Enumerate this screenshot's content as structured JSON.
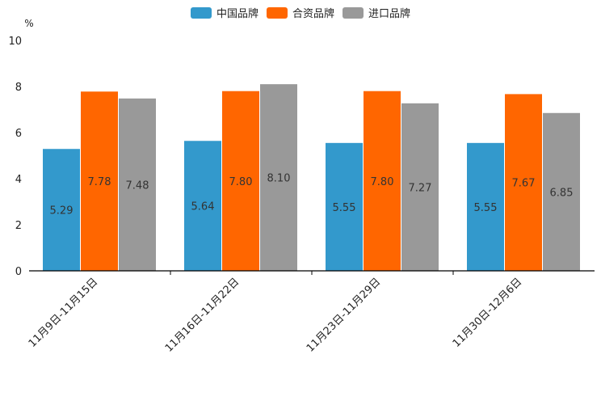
{
  "chart_data": {
    "type": "bar",
    "title": "",
    "xlabel": "",
    "ylabel": "%",
    "ylim": [
      0,
      10
    ],
    "yticks": [
      0,
      2,
      4,
      6,
      8,
      10
    ],
    "grid": false,
    "legend_position": "top-center",
    "categories": [
      "11月9日-11月15日",
      "11月16日-11月22日",
      "11月23日-11月29日",
      "11月30日-12月6日"
    ],
    "series": [
      {
        "name": "中国品牌",
        "color": "#3399cc",
        "values": [
          5.29,
          5.64,
          5.55,
          5.55
        ],
        "labels": [
          "5.29",
          "5.64",
          "5.55",
          "5.55"
        ]
      },
      {
        "name": "合资品牌",
        "color": "#ff6600",
        "values": [
          7.78,
          7.8,
          7.8,
          7.67
        ],
        "labels": [
          "7.78",
          "7.80",
          "7.80",
          "7.67"
        ]
      },
      {
        "name": "进口品牌",
        "color": "#999999",
        "values": [
          7.48,
          8.1,
          7.27,
          6.85
        ],
        "labels": [
          "7.48",
          "8.10",
          "7.27",
          "6.85"
        ]
      }
    ]
  }
}
